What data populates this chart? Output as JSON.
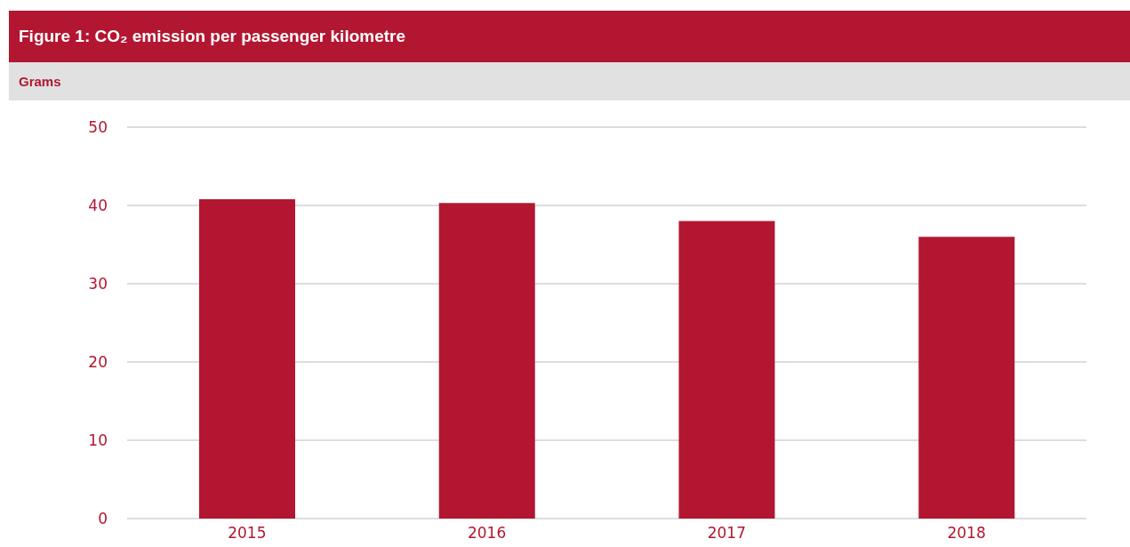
{
  "chart_data": {
    "type": "bar",
    "title": "Figure 1: CO₂ emission per passenger kilometre",
    "ylabel": "Grams",
    "categories": [
      "2015",
      "2016",
      "2017",
      "2018"
    ],
    "values": [
      40.8,
      40.3,
      38.0,
      36.0
    ],
    "color": "#b31630",
    "ylim": [
      0,
      50
    ],
    "yticks": [
      0,
      10,
      20,
      30,
      40,
      50
    ],
    "grid": "y"
  }
}
